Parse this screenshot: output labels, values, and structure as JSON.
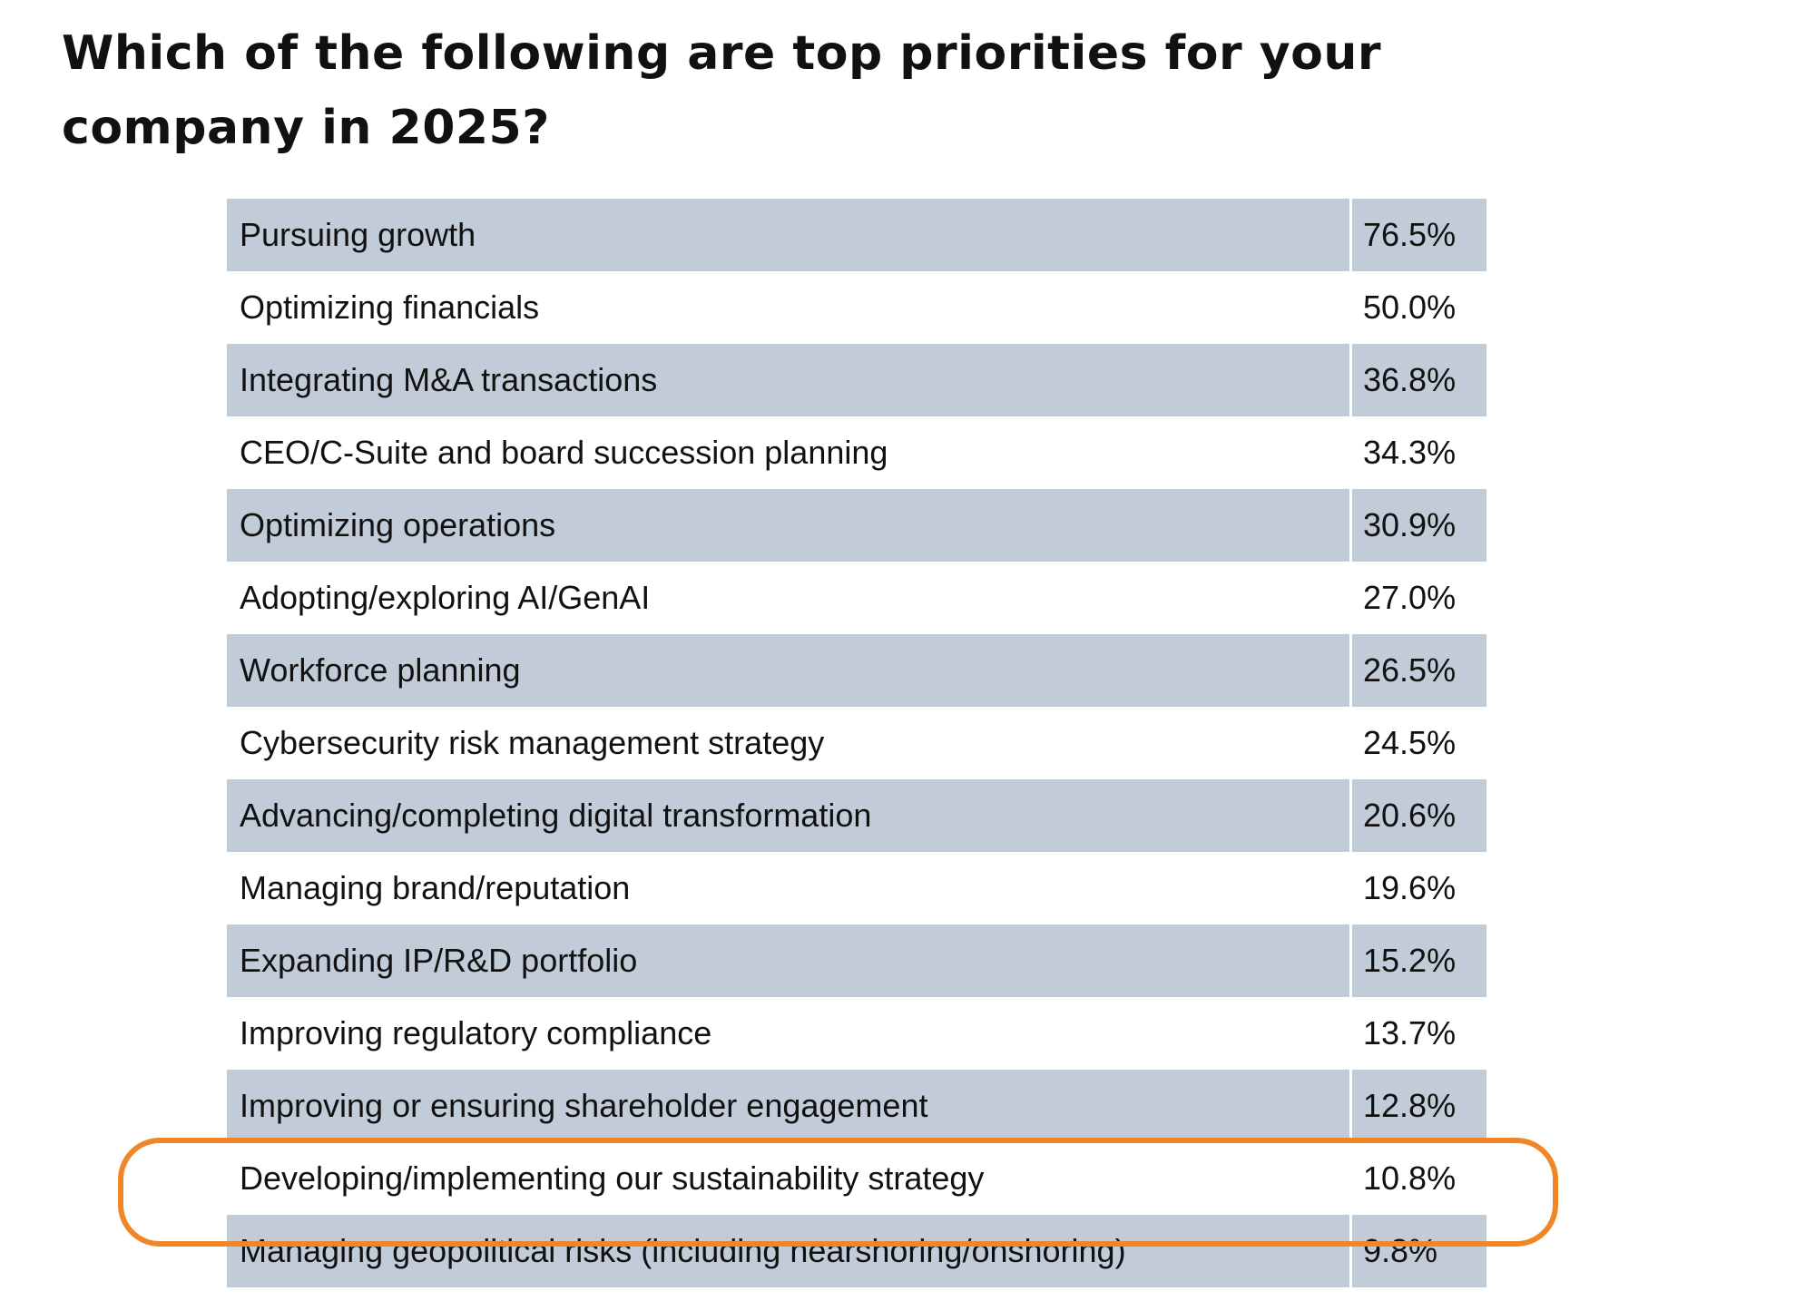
{
  "title": "Which of the following are top priorities for your company in 2025?",
  "highlight_color": "#f0862a",
  "row_shade_color": "#c1ccd8",
  "highlighted_row": "Developing/implementing our sustainability strategy",
  "rows": [
    {
      "label": "Pursuing growth",
      "value": "76.5%"
    },
    {
      "label": "Optimizing financials",
      "value": "50.0%"
    },
    {
      "label": "Integrating M&A transactions",
      "value": "36.8%"
    },
    {
      "label": "CEO/C-Suite and board succession planning",
      "value": "34.3%"
    },
    {
      "label": "Optimizing operations",
      "value": "30.9%"
    },
    {
      "label": "Adopting/exploring AI/GenAI",
      "value": "27.0%"
    },
    {
      "label": "Workforce planning",
      "value": "26.5%"
    },
    {
      "label": "Cybersecurity risk management strategy",
      "value": "24.5%"
    },
    {
      "label": "Advancing/completing digital transformation",
      "value": "20.6%"
    },
    {
      "label": "Managing brand/reputation",
      "value": "19.6%"
    },
    {
      "label": "Expanding IP/R&D portfolio",
      "value": "15.2%"
    },
    {
      "label": "Improving regulatory compliance",
      "value": "13.7%"
    },
    {
      "label": "Improving or ensuring shareholder engagement",
      "value": "12.8%"
    },
    {
      "label": "Developing/implementing our sustainability strategy",
      "value": "10.8%"
    },
    {
      "label": "Managing geopolitical risks (including nearshoring/onshoring)",
      "value": "9.8%"
    }
  ]
}
